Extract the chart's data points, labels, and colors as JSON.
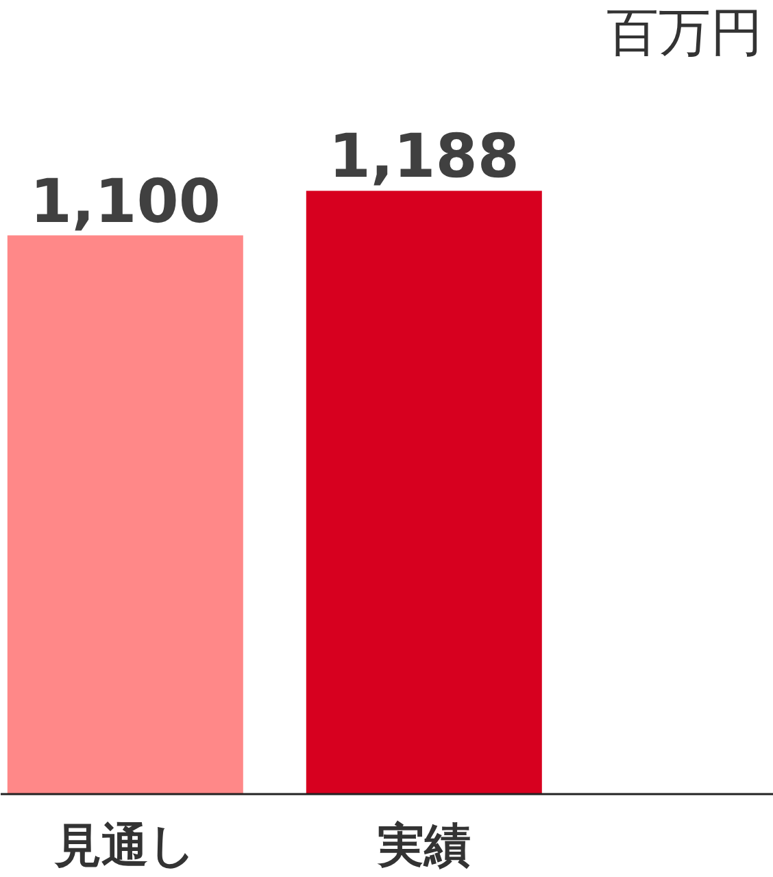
{
  "chart_data": {
    "type": "bar",
    "ylabel": "百万円",
    "categories": [
      "見通し",
      "実績"
    ],
    "values": [
      1100,
      1188
    ],
    "colors": [
      "#ff8888",
      "#d7001f"
    ],
    "value_labels": [
      "1,100",
      "1,188"
    ],
    "tick_labels": "x"
  }
}
